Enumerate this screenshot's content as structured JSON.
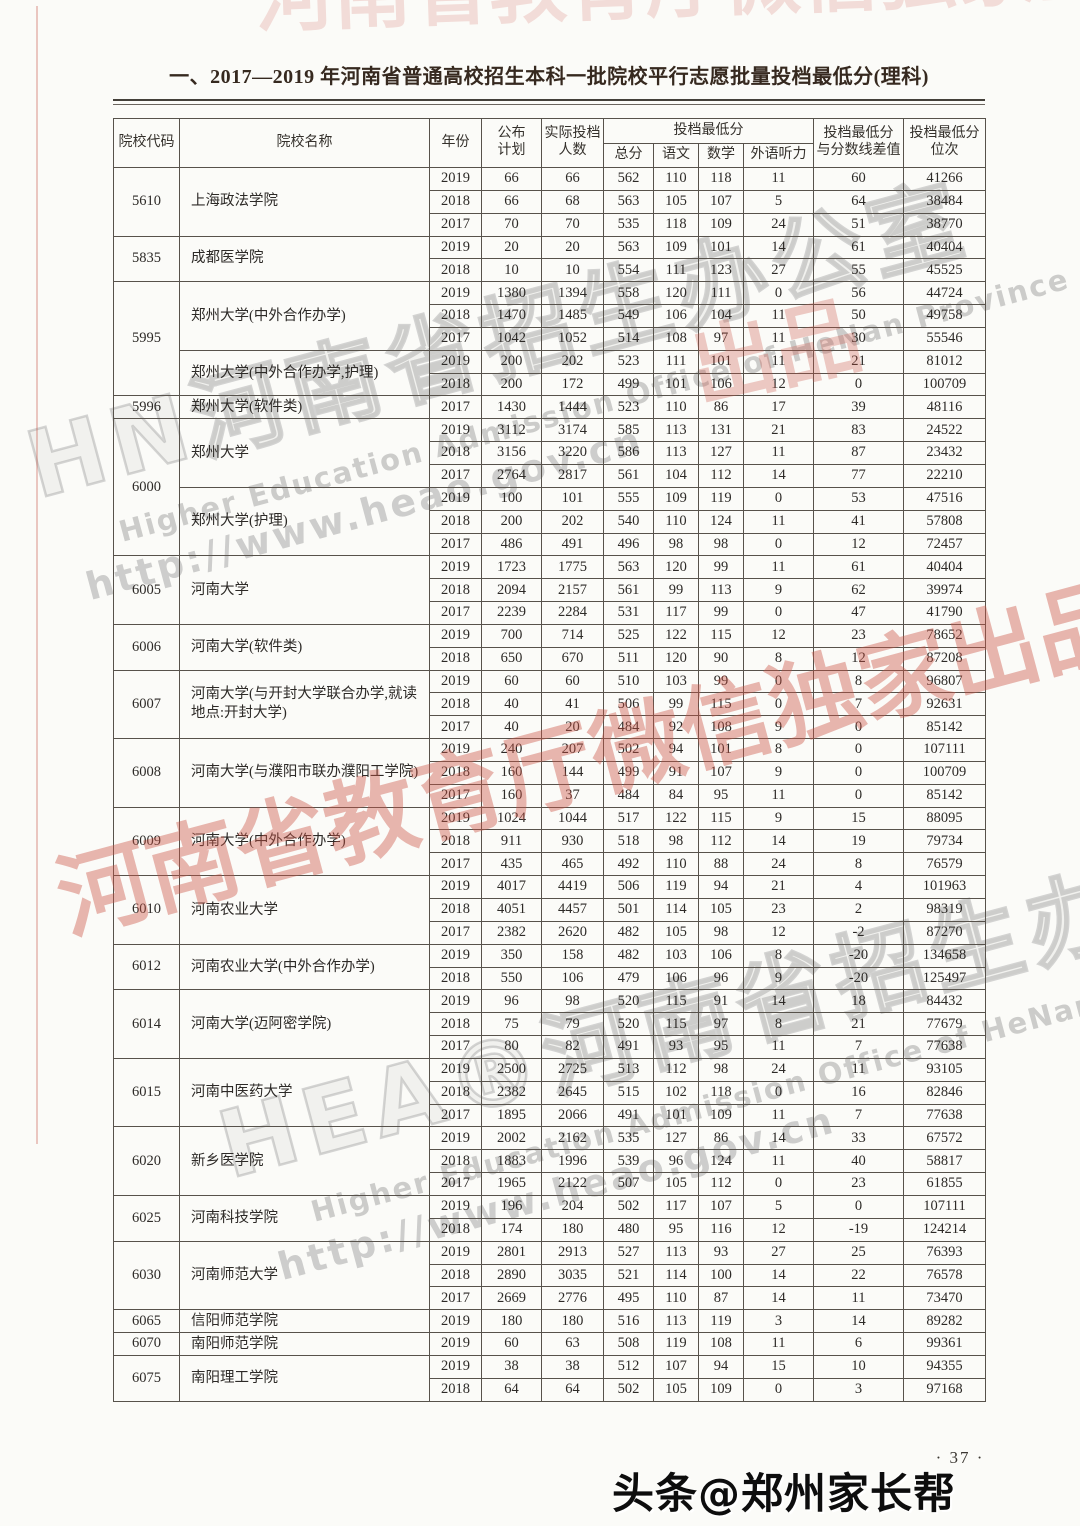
{
  "page": {
    "title": "一、2017—2019 年河南省普通高校招生本科一批院校平行志愿批量投档最低分(理科)",
    "page_number": "· 37 ·",
    "bottom_watermark": "头条@郑州家长帮"
  },
  "colors": {
    "red_watermark": "#cb5446",
    "gray_watermark": "#949494",
    "title_ink": "#36291f",
    "table_ink": "#2d2a27"
  },
  "watermarks": {
    "red_text": "河南省教育厅微信独家出品",
    "red_fragment": "出品",
    "gray_top_big": "HN河南省招生办公室",
    "gray_top_en": "Higher Education Admission Office of HeNan Province",
    "gray_top_url": "http://www.heao.gov.cn",
    "gray_bottom_big": "HEA®河南省招生办公室",
    "gray_bottom_en": "Higher Education Admission Office of HeNan Province",
    "gray_bottom_url": "http://www.heao.gov.cn"
  },
  "table": {
    "headers": {
      "code": "院校代码",
      "name": "院校名称",
      "year": "年份",
      "plan": [
        "公布",
        "计划"
      ],
      "actual": [
        "实际投档",
        "人数"
      ],
      "min_score_group": "投档最低分",
      "total": "总分",
      "chinese": "语文",
      "math": "数学",
      "listening": "外语听力",
      "diff": [
        "投档最低分",
        "与分数线差值"
      ],
      "rank": [
        "投档最低分",
        "位次"
      ]
    },
    "colleges": [
      {
        "code": "5610",
        "groups": [
          {
            "name": "上海政法学院",
            "rows": [
              [
                "2019",
                "66",
                "66",
                "562",
                "110",
                "118",
                "11",
                "60",
                "41266"
              ],
              [
                "2018",
                "66",
                "68",
                "563",
                "105",
                "107",
                "5",
                "64",
                "38484"
              ],
              [
                "2017",
                "70",
                "70",
                "535",
                "118",
                "109",
                "24",
                "51",
                "38770"
              ]
            ]
          }
        ]
      },
      {
        "code": "5835",
        "groups": [
          {
            "name": "成都医学院",
            "rows": [
              [
                "2019",
                "20",
                "20",
                "563",
                "109",
                "101",
                "14",
                "61",
                "40404"
              ],
              [
                "2018",
                "10",
                "10",
                "554",
                "111",
                "123",
                "27",
                "55",
                "45525"
              ]
            ]
          }
        ]
      },
      {
        "code": "5995",
        "groups": [
          {
            "name": "郑州大学(中外合作办学)",
            "rows": [
              [
                "2019",
                "1380",
                "1394",
                "558",
                "120",
                "111",
                "0",
                "56",
                "44724"
              ],
              [
                "2018",
                "1470",
                "1485",
                "549",
                "106",
                "104",
                "11",
                "50",
                "49758"
              ],
              [
                "2017",
                "1042",
                "1052",
                "514",
                "108",
                "97",
                "11",
                "30",
                "55546"
              ]
            ]
          },
          {
            "name": "郑州大学(中外合作办学,护理)",
            "rows": [
              [
                "2019",
                "200",
                "202",
                "523",
                "111",
                "101",
                "11",
                "21",
                "81012"
              ],
              [
                "2018",
                "200",
                "172",
                "499",
                "101",
                "106",
                "12",
                "0",
                "100709"
              ]
            ]
          }
        ]
      },
      {
        "code": "5996",
        "groups": [
          {
            "name": "郑州大学(软件类)",
            "rows": [
              [
                "2017",
                "1430",
                "1444",
                "523",
                "110",
                "86",
                "17",
                "39",
                "48116"
              ]
            ]
          }
        ]
      },
      {
        "code": "6000",
        "groups": [
          {
            "name": "郑州大学",
            "rows": [
              [
                "2019",
                "3112",
                "3174",
                "585",
                "113",
                "131",
                "21",
                "83",
                "24522"
              ],
              [
                "2018",
                "3156",
                "3220",
                "586",
                "113",
                "127",
                "11",
                "87",
                "23432"
              ],
              [
                "2017",
                "2764",
                "2817",
                "561",
                "104",
                "112",
                "14",
                "77",
                "22210"
              ]
            ]
          },
          {
            "name": "郑州大学(护理)",
            "rows": [
              [
                "2019",
                "100",
                "101",
                "555",
                "109",
                "119",
                "0",
                "53",
                "47516"
              ],
              [
                "2018",
                "200",
                "202",
                "540",
                "110",
                "124",
                "11",
                "41",
                "57808"
              ],
              [
                "2017",
                "486",
                "491",
                "496",
                "98",
                "98",
                "0",
                "12",
                "72457"
              ]
            ]
          }
        ]
      },
      {
        "code": "6005",
        "groups": [
          {
            "name": "河南大学",
            "rows": [
              [
                "2019",
                "1723",
                "1775",
                "563",
                "120",
                "99",
                "11",
                "61",
                "40404"
              ],
              [
                "2018",
                "2094",
                "2157",
                "561",
                "99",
                "113",
                "9",
                "62",
                "39974"
              ],
              [
                "2017",
                "2239",
                "2284",
                "531",
                "117",
                "99",
                "0",
                "47",
                "41790"
              ]
            ]
          }
        ]
      },
      {
        "code": "6006",
        "groups": [
          {
            "name": "河南大学(软件类)",
            "rows": [
              [
                "2019",
                "700",
                "714",
                "525",
                "122",
                "115",
                "12",
                "23",
                "78652"
              ],
              [
                "2018",
                "650",
                "670",
                "511",
                "120",
                "90",
                "8",
                "12",
                "87208"
              ]
            ]
          }
        ]
      },
      {
        "code": "6007",
        "groups": [
          {
            "name": "河南大学(与开封大学联合办学,就读地点:开封大学)",
            "rows": [
              [
                "2019",
                "60",
                "60",
                "510",
                "103",
                "99",
                "0",
                "8",
                "96807"
              ],
              [
                "2018",
                "40",
                "41",
                "506",
                "99",
                "115",
                "0",
                "7",
                "92631"
              ],
              [
                "2017",
                "40",
                "20",
                "484",
                "92",
                "108",
                "9",
                "0",
                "85142"
              ]
            ]
          }
        ]
      },
      {
        "code": "6008",
        "groups": [
          {
            "name": "河南大学(与濮阳市联办濮阳工学院)",
            "rows": [
              [
                "2019",
                "240",
                "207",
                "502",
                "94",
                "101",
                "8",
                "0",
                "107111"
              ],
              [
                "2018",
                "160",
                "144",
                "499",
                "91",
                "107",
                "9",
                "0",
                "100709"
              ],
              [
                "2017",
                "160",
                "37",
                "484",
                "84",
                "95",
                "11",
                "0",
                "85142"
              ]
            ]
          }
        ]
      },
      {
        "code": "6009",
        "groups": [
          {
            "name": "河南大学(中外合作办学)",
            "rows": [
              [
                "2019",
                "1024",
                "1044",
                "517",
                "122",
                "115",
                "9",
                "15",
                "88095"
              ],
              [
                "2018",
                "911",
                "930",
                "518",
                "98",
                "112",
                "14",
                "19",
                "79734"
              ],
              [
                "2017",
                "435",
                "465",
                "492",
                "110",
                "88",
                "24",
                "8",
                "76579"
              ]
            ]
          }
        ]
      },
      {
        "code": "6010",
        "groups": [
          {
            "name": "河南农业大学",
            "rows": [
              [
                "2019",
                "4017",
                "4419",
                "506",
                "119",
                "94",
                "21",
                "4",
                "101963"
              ],
              [
                "2018",
                "4051",
                "4457",
                "501",
                "114",
                "105",
                "23",
                "2",
                "98319"
              ],
              [
                "2017",
                "2382",
                "2620",
                "482",
                "105",
                "98",
                "12",
                "-2",
                "87270"
              ]
            ]
          }
        ]
      },
      {
        "code": "6012",
        "groups": [
          {
            "name": "河南农业大学(中外合作办学)",
            "rows": [
              [
                "2019",
                "350",
                "158",
                "482",
                "103",
                "106",
                "8",
                "-20",
                "134658"
              ],
              [
                "2018",
                "550",
                "106",
                "479",
                "106",
                "96",
                "9",
                "-20",
                "125497"
              ]
            ]
          }
        ]
      },
      {
        "code": "6014",
        "groups": [
          {
            "name": "河南大学(迈阿密学院)",
            "rows": [
              [
                "2019",
                "96",
                "98",
                "520",
                "115",
                "91",
                "14",
                "18",
                "84432"
              ],
              [
                "2018",
                "75",
                "79",
                "520",
                "115",
                "97",
                "8",
                "21",
                "77679"
              ],
              [
                "2017",
                "80",
                "82",
                "491",
                "93",
                "95",
                "11",
                "7",
                "77638"
              ]
            ]
          }
        ]
      },
      {
        "code": "6015",
        "groups": [
          {
            "name": "河南中医药大学",
            "rows": [
              [
                "2019",
                "2500",
                "2725",
                "513",
                "112",
                "98",
                "24",
                "11",
                "93105"
              ],
              [
                "2018",
                "2382",
                "2645",
                "515",
                "102",
                "118",
                "0",
                "16",
                "82846"
              ],
              [
                "2017",
                "1895",
                "2066",
                "491",
                "101",
                "109",
                "11",
                "7",
                "77638"
              ]
            ]
          }
        ]
      },
      {
        "code": "6020",
        "groups": [
          {
            "name": "新乡医学院",
            "rows": [
              [
                "2019",
                "2002",
                "2162",
                "535",
                "127",
                "86",
                "14",
                "33",
                "67572"
              ],
              [
                "2018",
                "1883",
                "1996",
                "539",
                "96",
                "124",
                "11",
                "40",
                "58817"
              ],
              [
                "2017",
                "1965",
                "2122",
                "507",
                "105",
                "112",
                "0",
                "23",
                "61855"
              ]
            ]
          }
        ]
      },
      {
        "code": "6025",
        "groups": [
          {
            "name": "河南科技学院",
            "rows": [
              [
                "2019",
                "196",
                "204",
                "502",
                "117",
                "107",
                "5",
                "0",
                "107111"
              ],
              [
                "2018",
                "174",
                "180",
                "480",
                "95",
                "116",
                "12",
                "-19",
                "124214"
              ]
            ]
          }
        ]
      },
      {
        "code": "6030",
        "groups": [
          {
            "name": "河南师范大学",
            "rows": [
              [
                "2019",
                "2801",
                "2913",
                "527",
                "113",
                "93",
                "27",
                "25",
                "76393"
              ],
              [
                "2018",
                "2890",
                "3035",
                "521",
                "114",
                "100",
                "14",
                "22",
                "76578"
              ],
              [
                "2017",
                "2669",
                "2776",
                "495",
                "110",
                "87",
                "14",
                "11",
                "73470"
              ]
            ]
          }
        ]
      },
      {
        "code": "6065",
        "groups": [
          {
            "name": "信阳师范学院",
            "rows": [
              [
                "2019",
                "180",
                "180",
                "516",
                "113",
                "119",
                "3",
                "14",
                "89282"
              ]
            ]
          }
        ]
      },
      {
        "code": "6070",
        "groups": [
          {
            "name": "南阳师范学院",
            "rows": [
              [
                "2019",
                "60",
                "63",
                "508",
                "119",
                "108",
                "11",
                "6",
                "99361"
              ]
            ]
          }
        ]
      },
      {
        "code": "6075",
        "groups": [
          {
            "name": "南阳理工学院",
            "rows": [
              [
                "2019",
                "38",
                "38",
                "512",
                "107",
                "94",
                "15",
                "10",
                "94355"
              ],
              [
                "2018",
                "64",
                "64",
                "502",
                "105",
                "109",
                "0",
                "3",
                "97168"
              ]
            ]
          }
        ]
      }
    ]
  }
}
